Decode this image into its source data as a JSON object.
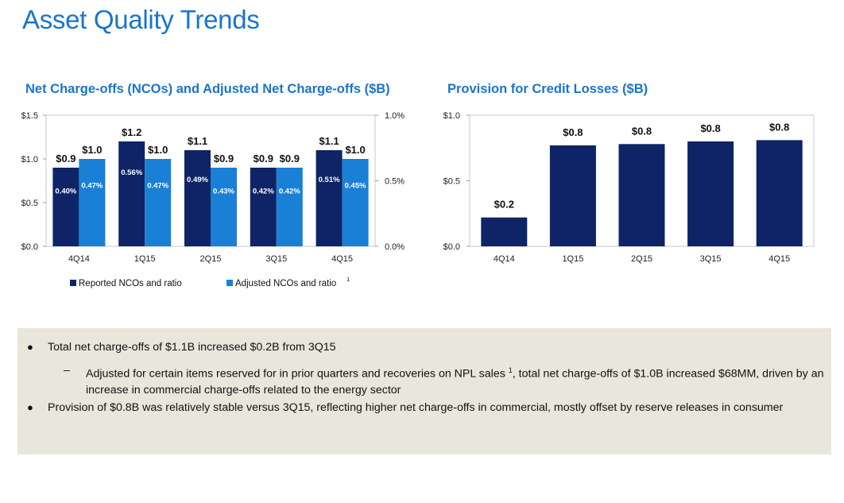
{
  "page": {
    "title": "Asset Quality Trends"
  },
  "colors": {
    "title": "#1a75c9",
    "reported": "#0f2466",
    "adjusted": "#1a80d6",
    "panel": "#e9e6dc"
  },
  "chart_data": [
    {
      "type": "bar",
      "title": "Net Charge-offs (NCOs) and Adjusted Net Charge-offs ($B)",
      "categories": [
        "4Q14",
        "1Q15",
        "2Q15",
        "3Q15",
        "4Q15"
      ],
      "series": [
        {
          "name": "Reported NCOs and ratio",
          "values": [
            0.9,
            1.2,
            1.1,
            0.9,
            1.1
          ],
          "value_labels": [
            "$0.9",
            "$1.2",
            "$1.1",
            "$0.9",
            "$1.1"
          ],
          "ratio_labels": [
            "0.40%",
            "0.56%",
            "0.49%",
            "0.42%",
            "0.51%"
          ]
        },
        {
          "name": "Adjusted NCOs and ratio",
          "footnote": "1",
          "values": [
            1.0,
            1.0,
            0.9,
            0.9,
            1.0
          ],
          "value_labels": [
            "$1.0",
            "$1.0",
            "$0.9",
            "$0.9",
            "$1.0"
          ],
          "ratio_labels": [
            "0.47%",
            "0.47%",
            "0.43%",
            "0.42%",
            "0.45%"
          ]
        }
      ],
      "ylim": [
        0,
        1.5
      ],
      "yticks": [
        "$0.0",
        "$0.5",
        "$1.0",
        "$1.5"
      ],
      "y2lim": [
        0,
        1.0
      ],
      "y2ticks": [
        "0.0%",
        "0.5%",
        "1.0%"
      ],
      "legend": "bottom"
    },
    {
      "type": "bar",
      "title": "Provision for Credit Losses ($B)",
      "categories": [
        "4Q14",
        "1Q15",
        "2Q15",
        "3Q15",
        "4Q15"
      ],
      "values": [
        0.2,
        0.8,
        0.8,
        0.8,
        0.8
      ],
      "value_labels": [
        "$0.2",
        "$0.8",
        "$0.8",
        "$0.8",
        "$0.8"
      ],
      "ylim": [
        0,
        1.0
      ],
      "yticks": [
        "$0.0",
        "$0.5",
        "$1.0"
      ]
    }
  ],
  "commentary": {
    "bullet1": "Total net charge-offs of $1.1B increased $0.2B from 3Q15",
    "sub1_a": "Adjusted for certain items reserved for in prior quarters and recoveries on NPL sales",
    "sub1_sup": "1",
    "sub1_b": ", total net charge-offs of $1.0B increased $68MM, driven by an increase in commercial charge-offs related to the energy sector",
    "bullet2": "Provision of $0.8B was relatively stable versus 3Q15, reflecting higher net charge-offs in commercial, mostly offset by reserve releases in consumer",
    "bullet_symbol": "●",
    "dash_symbol": "–"
  }
}
